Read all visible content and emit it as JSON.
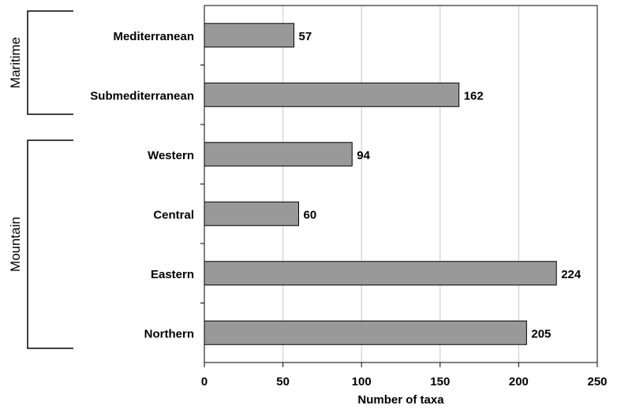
{
  "chart_data": {
    "type": "bar",
    "orientation": "horizontal",
    "categories": [
      "Mediterranean",
      "Submediterranean",
      "Western",
      "Central",
      "Eastern",
      "Northern"
    ],
    "values": [
      57,
      162,
      94,
      60,
      224,
      205
    ],
    "xlabel": "Number of taxa",
    "ylabel": "",
    "xlim": [
      0,
      250
    ],
    "xticks": [
      0,
      50,
      100,
      150,
      200,
      250
    ],
    "grid": "vertical",
    "groups": [
      {
        "label": "Maritime",
        "categories": [
          "Mediterranean",
          "Submediterranean"
        ]
      },
      {
        "label": "Mountain",
        "categories": [
          "Western",
          "Central",
          "Eastern",
          "Northern"
        ]
      }
    ],
    "colors": {
      "bar_fill": "#999999",
      "bar_stroke": "#000000",
      "grid": "#c8c8c8"
    }
  }
}
